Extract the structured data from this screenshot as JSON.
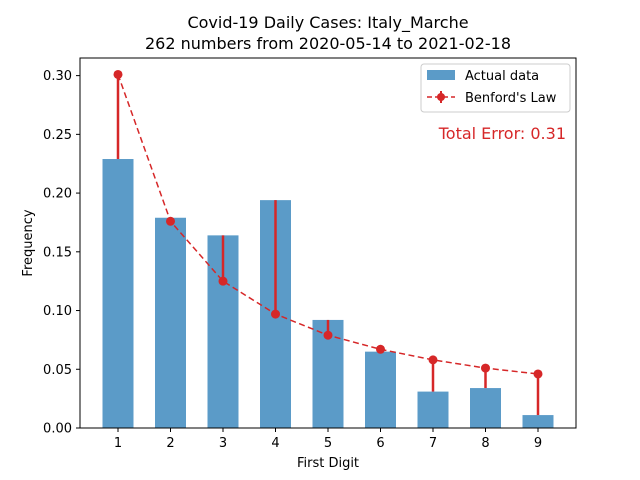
{
  "chart_data": {
    "type": "bar",
    "title_line1": "Covid-19 Daily Cases: Italy_Marche",
    "title_line2": "262 numbers from 2020-05-14 to 2021-02-18",
    "xlabel": "First Digit",
    "ylabel": "Frequency",
    "categories": [
      "1",
      "2",
      "3",
      "4",
      "5",
      "6",
      "7",
      "8",
      "9"
    ],
    "ylim": [
      0,
      0.315
    ],
    "yticks": [
      "0.00",
      "0.05",
      "0.10",
      "0.15",
      "0.20",
      "0.25",
      "0.30"
    ],
    "series": [
      {
        "name": "Actual data",
        "kind": "bar",
        "color": "#5b9bc8",
        "values": [
          0.229,
          0.179,
          0.164,
          0.194,
          0.092,
          0.065,
          0.031,
          0.034,
          0.011
        ]
      },
      {
        "name": "Benford's Law",
        "kind": "line-dashed-markers",
        "color": "#d62728",
        "values": [
          0.301,
          0.176,
          0.125,
          0.097,
          0.079,
          0.067,
          0.058,
          0.051,
          0.046
        ]
      }
    ],
    "annotation": "Total Error: 0.31",
    "annotation_color": "#d62728",
    "legend_position": "top-right",
    "grid": false
  }
}
